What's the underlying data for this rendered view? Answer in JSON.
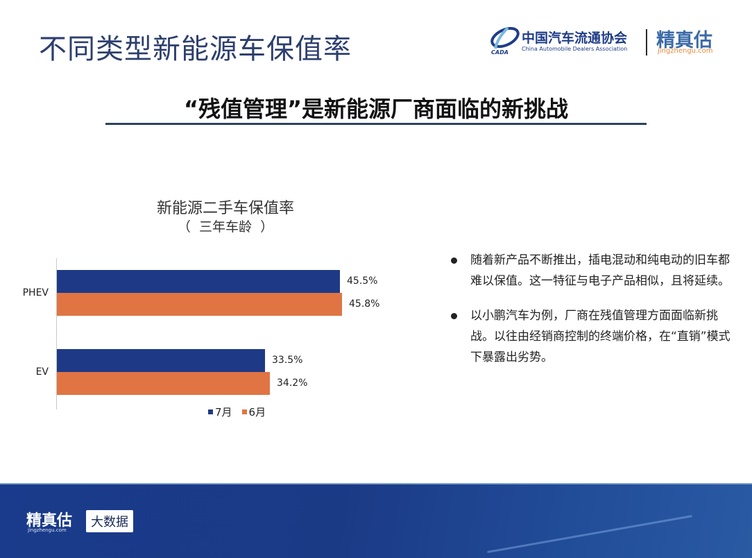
{
  "header": {
    "title": "不同类型新能源车保值率",
    "logo_cada_cn": "中国汽车流通协会",
    "logo_cada_en": "China Automobile Dealers Association",
    "logo_cada_mark": "CADA",
    "logo_jzg_cn": "精真估",
    "logo_jzg_en": "jingzhengu.com"
  },
  "subtitle": "“残值管理”是新能源厂商面临的新挑战",
  "colors": {
    "series_july": "#1e3a86",
    "series_june": "#e07543",
    "title_blue": "#2d3f6e",
    "footer_blue": "#1b3a86"
  },
  "chart_data": {
    "type": "bar",
    "orientation": "horizontal",
    "title": "新能源二手车保值率",
    "subtitle": "（  三年车龄  ）",
    "categories": [
      "PHEV",
      "EV"
    ],
    "series": [
      {
        "name": "7月",
        "values": [
          45.5,
          33.5
        ],
        "labels": [
          "45.5%",
          "33.5%"
        ],
        "color": "#1e3a86"
      },
      {
        "name": "6月",
        "values": [
          45.8,
          34.2
        ],
        "labels": [
          "45.8%",
          "34.2%"
        ],
        "color": "#e07543"
      }
    ],
    "xlabel": "",
    "ylabel": "",
    "unit": "%",
    "grid": false,
    "legend_position": "bottom"
  },
  "bullets": [
    {
      "text": "随着新产品不断推出，插电混动和纯电动的旧车都难以保值。这一特征与电子产品相似，且将延续。"
    },
    {
      "text": "以小鹏汽车为例，厂商在残值管理方面面临新挑战。以往由经销商控制的终端价格，在“直销”模式下暴露出劣势。"
    }
  ],
  "footer": {
    "logo_cn": "精真估",
    "logo_en": "jingzhengu.com",
    "badge": "大数据"
  }
}
